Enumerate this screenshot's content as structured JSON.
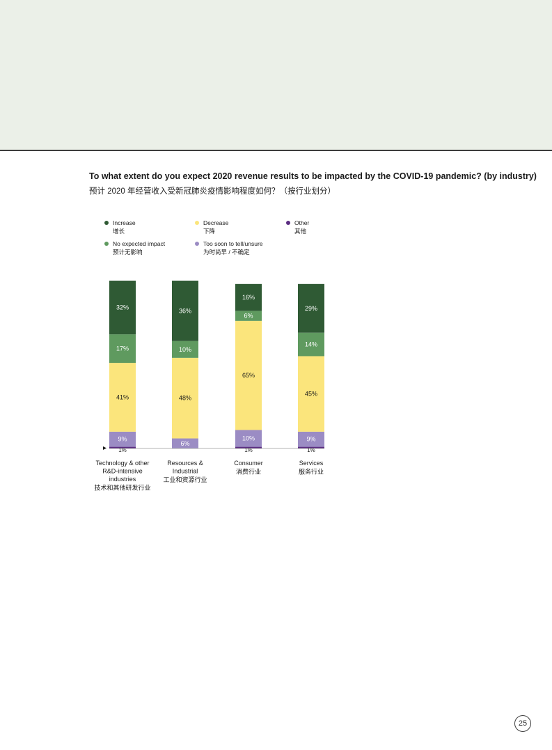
{
  "chart_data": {
    "type": "bar",
    "stacked": true,
    "title": "To what extent do you expect 2020 revenue results to be impacted by the COVID-19 pandemic? (by industry)",
    "subtitle": "预计 2020 年经营收入受新冠肺炎疫情影响程度如何？（按行业划分）",
    "categories": [
      {
        "en": [
          "Technology & other",
          "R&D-intensive",
          "industries"
        ],
        "zh": "技术和其他研发行业"
      },
      {
        "en": [
          "Resources &",
          "Industrial"
        ],
        "zh": "工业和资源行业"
      },
      {
        "en": [
          "Consumer"
        ],
        "zh": "消费行业"
      },
      {
        "en": [
          "Services"
        ],
        "zh": "服务行业"
      }
    ],
    "series": [
      {
        "name": "Other",
        "name_zh": "其他",
        "color": "#5b2d82",
        "values": [
          1,
          0,
          1,
          1
        ],
        "labels": [
          "1%",
          "",
          "1%",
          "1%"
        ]
      },
      {
        "name": "Too soon to tell/unsure",
        "name_zh": "为时尚早 / 不确定",
        "color": "#9b8cc4",
        "values": [
          9,
          6,
          10,
          9
        ],
        "labels": [
          "9%",
          "6%",
          "10%",
          "9%"
        ]
      },
      {
        "name": "Decrease",
        "name_zh": "下降",
        "color": "#fbe57c",
        "values": [
          41,
          48,
          65,
          45
        ],
        "labels": [
          "41%",
          "48%",
          "65%",
          "45%"
        ]
      },
      {
        "name": "No expected impact",
        "name_zh": "预计无影响",
        "color": "#5f9a5f",
        "values": [
          17,
          10,
          6,
          14
        ],
        "labels": [
          "17%",
          "10%",
          "6%",
          "14%"
        ]
      },
      {
        "name": "Increase",
        "name_zh": "增长",
        "color": "#2f5a34",
        "values": [
          32,
          36,
          16,
          29
        ],
        "labels": [
          "32%",
          "36%",
          "16%",
          "29%"
        ]
      }
    ],
    "ylim": [
      0,
      100
    ],
    "legend": [
      {
        "en": "Increase",
        "zh": "增长",
        "color": "#2f5a34"
      },
      {
        "en": "Decrease",
        "zh": "下降",
        "color": "#fbe57c"
      },
      {
        "en": "Other",
        "zh": "其他",
        "color": "#5b2d82"
      },
      {
        "en": "No expected impact",
        "zh": "预计无影响",
        "color": "#5f9a5f"
      },
      {
        "en": "Too soon to tell/unsure",
        "zh": "为时尚早 / 不确定",
        "color": "#9b8cc4"
      }
    ],
    "legend_placement": "top"
  },
  "page": {
    "number": "25"
  }
}
